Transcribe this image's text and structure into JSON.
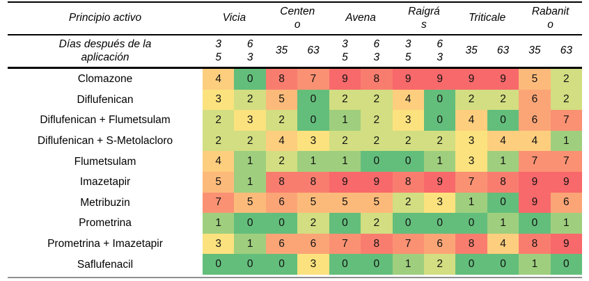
{
  "header": {
    "corner_label": "Principio activo",
    "days_label": "Días después de la\naplicación",
    "crops_display": [
      "Vicia",
      "Centen\no",
      "Avena",
      "Raigrá\ns",
      "Triticale",
      "Rabanit\no"
    ],
    "days_display": [
      "3\n5",
      "6\n3",
      "35",
      "63",
      "3\n5",
      "6\n3",
      "3\n5",
      "6\n3",
      "35",
      "63",
      "35",
      "63"
    ]
  },
  "chart_data": {
    "type": "heatmap",
    "title": "",
    "row_labels": [
      "Clomazone",
      "Diflufenican",
      "Diflufenican + Flumetsulam",
      "Diflufenican + S-Metolacloro",
      "Flumetsulam",
      "Imazetapir",
      "Metribuzin",
      "Prometrina",
      "Prometrina +  Imazetapir",
      "Saflufenacil"
    ],
    "col_groups": [
      {
        "name": "Vicia",
        "days": [
          "35",
          "63"
        ]
      },
      {
        "name": "Centeno",
        "days": [
          "35",
          "63"
        ]
      },
      {
        "name": "Avena",
        "days": [
          "35",
          "63"
        ]
      },
      {
        "name": "Raigrás",
        "days": [
          "35",
          "63"
        ]
      },
      {
        "name": "Triticale",
        "days": [
          "35",
          "63"
        ]
      },
      {
        "name": "Rabanito",
        "days": [
          "35",
          "63"
        ]
      }
    ],
    "columns": [
      "Vicia 35",
      "Vicia 63",
      "Centeno 35",
      "Centeno 63",
      "Avena 35",
      "Avena 63",
      "Raigrás 35",
      "Raigrás 63",
      "Triticale 35",
      "Triticale 63",
      "Rabanito 35",
      "Rabanito 63"
    ],
    "values": [
      [
        4,
        0,
        8,
        7,
        9,
        8,
        9,
        9,
        9,
        9,
        5,
        2
      ],
      [
        3,
        2,
        5,
        0,
        2,
        2,
        4,
        0,
        2,
        2,
        6,
        2
      ],
      [
        2,
        3,
        2,
        0,
        1,
        2,
        3,
        0,
        4,
        0,
        6,
        7
      ],
      [
        2,
        2,
        4,
        3,
        2,
        2,
        2,
        2,
        3,
        4,
        4,
        1
      ],
      [
        4,
        1,
        2,
        1,
        1,
        0,
        0,
        1,
        3,
        1,
        7,
        7
      ],
      [
        5,
        1,
        8,
        8,
        9,
        9,
        8,
        9,
        7,
        8,
        9,
        9
      ],
      [
        7,
        5,
        6,
        5,
        5,
        5,
        2,
        3,
        1,
        0,
        9,
        6
      ],
      [
        1,
        0,
        0,
        2,
        0,
        2,
        0,
        0,
        0,
        1,
        0,
        1
      ],
      [
        3,
        1,
        6,
        6,
        7,
        8,
        7,
        6,
        8,
        4,
        8,
        9
      ],
      [
        0,
        0,
        0,
        3,
        0,
        0,
        1,
        2,
        0,
        0,
        1,
        0
      ]
    ],
    "value_range": [
      0,
      9
    ],
    "legend_position": "none",
    "colormap": "green-yellow-red 3-color scale (0 = green / low damage, 9 = red / high damage)",
    "value_colors": {
      "0": "#63BE7B",
      "1": "#9FCF7E",
      "2": "#D2DE81",
      "3": "#FBE27E",
      "4": "#FDCE7E",
      "5": "#FCBA7A",
      "6": "#FBA577",
      "7": "#FA9173",
      "8": "#F97D6F",
      "9": "#F8696B"
    }
  }
}
